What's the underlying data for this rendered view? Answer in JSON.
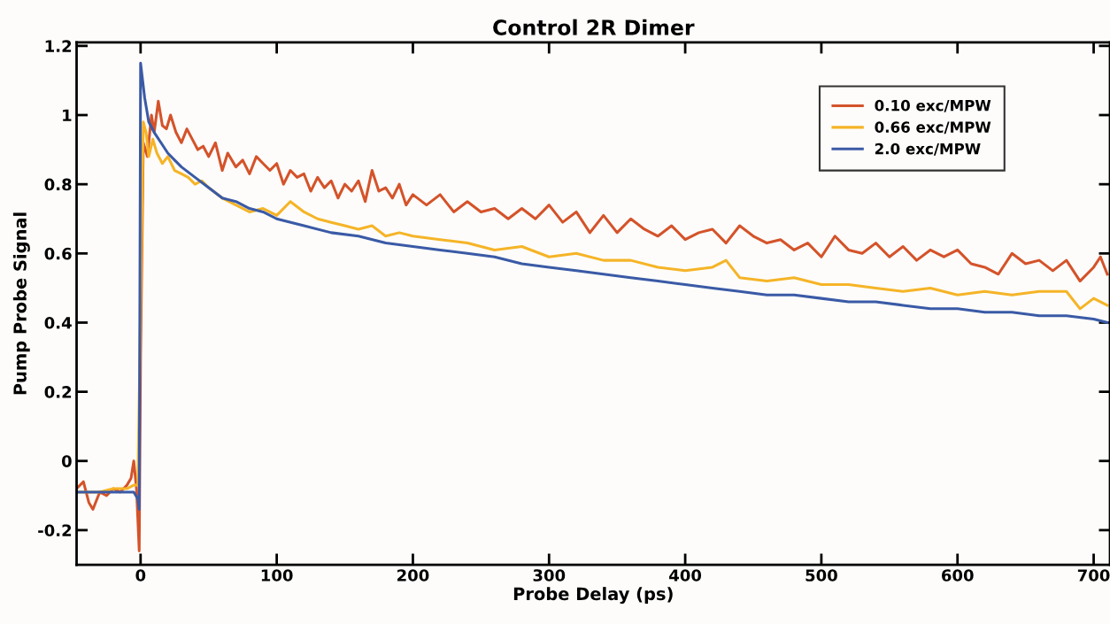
{
  "chart_data": {
    "type": "line",
    "title": "Control 2R Dimer",
    "xlabel": "Probe Delay (ps)",
    "ylabel": "Pump Probe Signal",
    "xlim": [
      -47,
      712
    ],
    "ylim": [
      -0.3,
      1.21
    ],
    "xticks": [
      0,
      100,
      200,
      300,
      400,
      500,
      600,
      700
    ],
    "yticks": [
      -0.2,
      0,
      0.2,
      0.4,
      0.6,
      0.8,
      1,
      1.2
    ],
    "grid": false,
    "legend": "top right",
    "marker": "none",
    "line_style": "solid",
    "series": [
      {
        "name": "0.10 exc/MPW",
        "color": "#d4532a",
        "x": [
          -47,
          -42,
          -38,
          -35,
          -30,
          -25,
          -20,
          -15,
          -10,
          -7,
          -5,
          -3,
          -1,
          0,
          2,
          5,
          8,
          10,
          13,
          16,
          19,
          22,
          26,
          30,
          34,
          38,
          42,
          46,
          50,
          55,
          60,
          64,
          70,
          75,
          80,
          85,
          90,
          95,
          100,
          105,
          110,
          115,
          120,
          125,
          130,
          135,
          140,
          145,
          150,
          155,
          160,
          165,
          170,
          175,
          180,
          185,
          190,
          195,
          200,
          210,
          220,
          230,
          240,
          250,
          260,
          270,
          280,
          290,
          300,
          310,
          320,
          330,
          340,
          350,
          360,
          370,
          380,
          390,
          400,
          410,
          420,
          430,
          440,
          450,
          460,
          470,
          480,
          490,
          500,
          510,
          520,
          530,
          540,
          550,
          560,
          570,
          580,
          590,
          600,
          610,
          620,
          630,
          640,
          650,
          660,
          670,
          680,
          690,
          700,
          705,
          710
        ],
        "values": [
          -0.08,
          -0.06,
          -0.12,
          -0.14,
          -0.09,
          -0.1,
          -0.08,
          -0.09,
          -0.07,
          -0.05,
          0.0,
          -0.08,
          -0.26,
          0.3,
          0.92,
          0.88,
          1.0,
          0.95,
          1.04,
          0.97,
          0.96,
          1.0,
          0.95,
          0.92,
          0.96,
          0.93,
          0.9,
          0.91,
          0.88,
          0.92,
          0.84,
          0.89,
          0.85,
          0.87,
          0.83,
          0.88,
          0.86,
          0.84,
          0.86,
          0.8,
          0.84,
          0.82,
          0.83,
          0.78,
          0.82,
          0.79,
          0.81,
          0.76,
          0.8,
          0.78,
          0.81,
          0.75,
          0.84,
          0.78,
          0.79,
          0.76,
          0.8,
          0.74,
          0.77,
          0.74,
          0.77,
          0.72,
          0.75,
          0.72,
          0.73,
          0.7,
          0.73,
          0.7,
          0.74,
          0.69,
          0.72,
          0.66,
          0.71,
          0.66,
          0.7,
          0.67,
          0.65,
          0.68,
          0.64,
          0.66,
          0.67,
          0.63,
          0.68,
          0.65,
          0.63,
          0.64,
          0.61,
          0.63,
          0.59,
          0.65,
          0.61,
          0.6,
          0.63,
          0.59,
          0.62,
          0.58,
          0.61,
          0.59,
          0.61,
          0.57,
          0.56,
          0.54,
          0.6,
          0.57,
          0.58,
          0.55,
          0.58,
          0.52,
          0.56,
          0.59,
          0.54
        ]
      },
      {
        "name": "0.66 exc/MPW",
        "color": "#f5b427",
        "x": [
          -47,
          -40,
          -30,
          -20,
          -10,
          -5,
          -2,
          0,
          2,
          4,
          6,
          9,
          12,
          16,
          20,
          25,
          30,
          35,
          40,
          45,
          50,
          60,
          70,
          80,
          90,
          100,
          110,
          120,
          130,
          140,
          150,
          160,
          170,
          180,
          190,
          200,
          220,
          240,
          260,
          280,
          300,
          320,
          340,
          360,
          380,
          400,
          420,
          430,
          440,
          460,
          480,
          500,
          520,
          540,
          560,
          580,
          600,
          620,
          640,
          660,
          680,
          690,
          700,
          710
        ],
        "values": [
          -0.09,
          -0.09,
          -0.09,
          -0.08,
          -0.08,
          -0.07,
          -0.07,
          0.45,
          0.98,
          0.95,
          0.88,
          0.93,
          0.89,
          0.86,
          0.88,
          0.84,
          0.83,
          0.82,
          0.8,
          0.81,
          0.79,
          0.76,
          0.74,
          0.72,
          0.73,
          0.71,
          0.75,
          0.72,
          0.7,
          0.69,
          0.68,
          0.67,
          0.68,
          0.65,
          0.66,
          0.65,
          0.64,
          0.63,
          0.61,
          0.62,
          0.59,
          0.6,
          0.58,
          0.58,
          0.56,
          0.55,
          0.56,
          0.58,
          0.53,
          0.52,
          0.53,
          0.51,
          0.51,
          0.5,
          0.49,
          0.5,
          0.48,
          0.49,
          0.48,
          0.49,
          0.49,
          0.44,
          0.47,
          0.45
        ]
      },
      {
        "name": "2.0 exc/MPW",
        "color": "#3a5aa6",
        "x": [
          -47,
          -40,
          -30,
          -20,
          -10,
          -5,
          -2,
          -1,
          0,
          3,
          6,
          10,
          15,
          20,
          25,
          30,
          40,
          50,
          60,
          70,
          80,
          90,
          100,
          120,
          140,
          160,
          180,
          200,
          220,
          240,
          260,
          280,
          300,
          320,
          340,
          360,
          380,
          400,
          420,
          440,
          460,
          480,
          500,
          520,
          540,
          560,
          580,
          600,
          620,
          640,
          660,
          680,
          700,
          710
        ],
        "values": [
          -0.09,
          -0.09,
          -0.09,
          -0.09,
          -0.09,
          -0.09,
          -0.11,
          -0.14,
          1.15,
          1.05,
          0.98,
          0.95,
          0.92,
          0.89,
          0.87,
          0.85,
          0.82,
          0.79,
          0.76,
          0.75,
          0.73,
          0.72,
          0.7,
          0.68,
          0.66,
          0.65,
          0.63,
          0.62,
          0.61,
          0.6,
          0.59,
          0.57,
          0.56,
          0.55,
          0.54,
          0.53,
          0.52,
          0.51,
          0.5,
          0.49,
          0.48,
          0.48,
          0.47,
          0.46,
          0.46,
          0.45,
          0.44,
          0.44,
          0.43,
          0.43,
          0.42,
          0.42,
          0.41,
          0.4
        ]
      }
    ]
  }
}
